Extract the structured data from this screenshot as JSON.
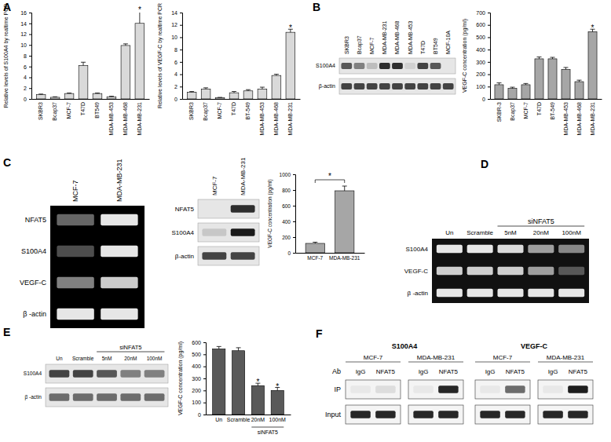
{
  "panel_labels": [
    "A",
    "B",
    "C",
    "D",
    "E",
    "F"
  ],
  "chart_data": [
    {
      "type": "bar",
      "ylabel": "Relative levels of S100A4 by realtime PCR",
      "categories": [
        "SKBR3",
        "Bcap37",
        "MCF-7",
        "T47D",
        "BT549",
        "MDA-MB-453",
        "MDA-MB-468",
        "MDA-MB-231"
      ],
      "values": [
        0.8,
        0.3,
        1.0,
        6.2,
        1.0,
        0.4,
        9.9,
        14.0
      ],
      "errors": [
        0.1,
        0.1,
        0.1,
        0.6,
        0.1,
        0.1,
        0.3,
        2.3
      ],
      "color": "#d9d9d9",
      "ylim": [
        0,
        16
      ],
      "yticks": [
        0,
        2,
        4,
        6,
        8,
        10,
        12,
        14,
        16
      ],
      "annotations": [
        {
          "index": 7,
          "text": "*"
        }
      ]
    },
    {
      "type": "bar",
      "ylabel": "Relative levels of VEGF-C by realtime PCR",
      "categories": [
        "SKBR3",
        "Bcap37",
        "MCF-7",
        "T47D",
        "BT-549",
        "MDA-MB-453",
        "MDA-MB-468",
        "MDA-MB-231"
      ],
      "values": [
        1.1,
        1.6,
        0.2,
        1.0,
        1.3,
        1.6,
        3.8,
        10.8
      ],
      "errors": [
        0.1,
        0.2,
        0.05,
        0.2,
        0.2,
        0.3,
        0.2,
        0.5
      ],
      "color": "#d9d9d9",
      "ylim": [
        0,
        14
      ],
      "yticks": [
        0,
        2,
        4,
        6,
        8,
        10,
        12,
        14
      ],
      "annotations": [
        {
          "index": 7,
          "text": "*"
        }
      ]
    },
    {
      "type": "bar",
      "ylabel": "VEGF-C concentration (pg/ml)",
      "categories": [
        "SKBR-3",
        "Bcap37",
        "MCF-7",
        "T47D",
        "BT-549",
        "MDA-MB-453",
        "MDA-MB-468",
        "MDA-MB-231"
      ],
      "values": [
        115,
        85,
        115,
        325,
        325,
        240,
        140,
        545
      ],
      "errors": [
        15,
        10,
        10,
        15,
        12,
        15,
        12,
        20
      ],
      "color": "#a6a6a6",
      "ylim": [
        0,
        700
      ],
      "yticks": [
        0,
        100,
        200,
        300,
        400,
        500,
        600,
        700
      ],
      "annotations": [
        {
          "index": 7,
          "text": "*"
        }
      ]
    },
    {
      "type": "bar",
      "ylabel": "VEGF-C concentration (pg/ml)",
      "categories": [
        "MCF-7",
        "MDA-MB-231"
      ],
      "values": [
        120,
        790
      ],
      "errors": [
        15,
        60
      ],
      "color": "#a6a6a6",
      "ylim": [
        0,
        1000
      ],
      "yticks": [
        0,
        200,
        400,
        600,
        800,
        1000
      ],
      "annotations": [
        {
          "from": 0,
          "to": 1,
          "text": "*"
        }
      ]
    },
    {
      "type": "bar",
      "ylabel": "VEGF-C concentration (pg/ml)",
      "categories": [
        "Un",
        "Scramble",
        "20nM",
        "100nM"
      ],
      "values": [
        545,
        530,
        240,
        200
      ],
      "errors": [
        20,
        25,
        20,
        25
      ],
      "color": "#595959",
      "ylim": [
        0,
        600
      ],
      "yticks": [
        0,
        100,
        200,
        300,
        400,
        500,
        600
      ],
      "category_groups": [
        {
          "label": "siNFAT5",
          "start": 2,
          "end": 3
        }
      ],
      "annotations": [
        {
          "index": 2,
          "text": "*"
        },
        {
          "index": 3,
          "text": "*"
        }
      ]
    }
  ],
  "blots": [
    {
      "lanes": [
        "SKBR3",
        "Bcap37",
        "MCF-7",
        "MDA-MB-231",
        "MDA-MB-468",
        "MDA-MB-453",
        "T47D",
        "BT549",
        "MCF-10A"
      ],
      "rows": [
        {
          "label": "S100A4",
          "bands": [
            0.7,
            0.5,
            0.2,
            0.9,
            0.9,
            0.1,
            0.8,
            0.7,
            0.0
          ]
        },
        {
          "label": "β-actin",
          "bands": [
            0.8,
            0.8,
            0.8,
            0.8,
            0.8,
            0.8,
            0.8,
            0.8,
            0.8
          ]
        }
      ]
    },
    {
      "lanes": [
        "MCF-7",
        "MDA-MB-231"
      ],
      "rows": [
        {
          "label": "NFAT5",
          "bands": [
            0.4,
            0.9
          ]
        },
        {
          "label": "S100A4",
          "bands": [
            0.3,
            0.9
          ]
        },
        {
          "label": "VEGF-C",
          "bands": [
            0.5,
            0.8
          ]
        },
        {
          "label": "β -actin",
          "bands": [
            0.9,
            0.9
          ]
        }
      ]
    },
    {
      "lanes": [
        "MCF-7",
        "MDA-MB-231"
      ],
      "rows": [
        {
          "label": "NFAT5",
          "bands": [
            0.0,
            0.9
          ]
        },
        {
          "label": "S100A4",
          "bands": [
            0.15,
            1.0
          ]
        },
        {
          "label": "β-actin",
          "bands": [
            0.8,
            0.8
          ]
        }
      ]
    },
    {
      "lanes": [
        "Un",
        "Scramble",
        "5nM",
        "20nM",
        "100nM"
      ],
      "lane_groups": [
        {
          "label": "siNFAT5",
          "start": 2,
          "end": 4
        }
      ],
      "rows": [
        {
          "label": "S100A4",
          "bands": [
            0.9,
            0.9,
            0.85,
            0.6,
            0.5
          ]
        },
        {
          "label": "VEGF-C",
          "bands": [
            0.8,
            0.8,
            0.8,
            0.6,
            0.3
          ]
        },
        {
          "label": "β -actin",
          "bands": [
            0.9,
            0.9,
            0.9,
            0.9,
            0.9
          ]
        }
      ]
    },
    {
      "lanes": [
        "Un",
        "Scramble",
        "5nM",
        "20nM",
        "100nM"
      ],
      "lane_groups": [
        {
          "label": "siNFAT5",
          "start": 2,
          "end": 4
        }
      ],
      "rows": [
        {
          "label": "S100A4",
          "bands": [
            0.8,
            0.8,
            0.7,
            0.5,
            0.5
          ]
        },
        {
          "label": "β -actin",
          "bands": [
            0.6,
            0.6,
            0.6,
            0.6,
            0.6
          ]
        }
      ]
    }
  ],
  "chip": {
    "row_header": "Ab",
    "groups": [
      {
        "title": "S100A4",
        "subgroups": [
          {
            "title": "MCF-7",
            "lanes": [
              "IgG",
              "NFAT5"
            ]
          },
          {
            "title": "MDA-MB-231",
            "lanes": [
              "IgG",
              "NFAT5"
            ]
          }
        ]
      },
      {
        "title": "VEGF-C",
        "subgroups": [
          {
            "title": "MCF-7",
            "lanes": [
              "IgG",
              "NFAT5"
            ]
          },
          {
            "title": "MDA-MB-231",
            "lanes": [
              "IgG",
              "NFAT5"
            ]
          }
        ]
      }
    ],
    "rows": [
      {
        "label": "IP",
        "bands": [
          0.05,
          0.1,
          0.05,
          0.9,
          0.05,
          0.6,
          0.05,
          0.95
        ]
      },
      {
        "label": "Input",
        "bands": [
          0.9,
          0.9,
          0.9,
          0.9,
          0.9,
          0.9,
          0.9,
          0.9
        ]
      }
    ]
  }
}
